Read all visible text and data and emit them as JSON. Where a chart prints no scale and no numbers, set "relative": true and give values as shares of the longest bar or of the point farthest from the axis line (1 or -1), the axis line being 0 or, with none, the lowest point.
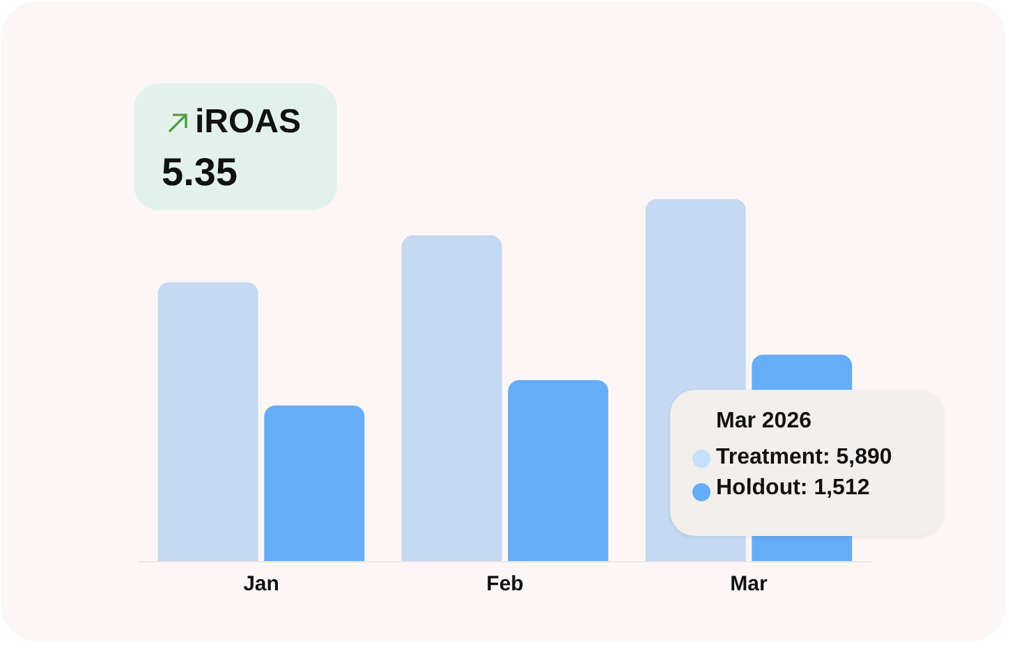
{
  "chart_data": {
    "type": "bar",
    "relative": true,
    "categories": [
      "Jan",
      "Feb",
      "Mar"
    ],
    "series": [
      {
        "color": "#c5d9f2",
        "values": [
          0.77,
          0.9,
          1
        ]
      },
      {
        "color": "#66adf7",
        "values": [
          0.43,
          0.5,
          0.57
        ]
      }
    ],
    "annotations": [
      "iROAS",
      "5.35",
      "Mar 2026",
      "Treatment: 5,890",
      "Holdout: 1,512"
    ],
    "stacked": false
  }
}
